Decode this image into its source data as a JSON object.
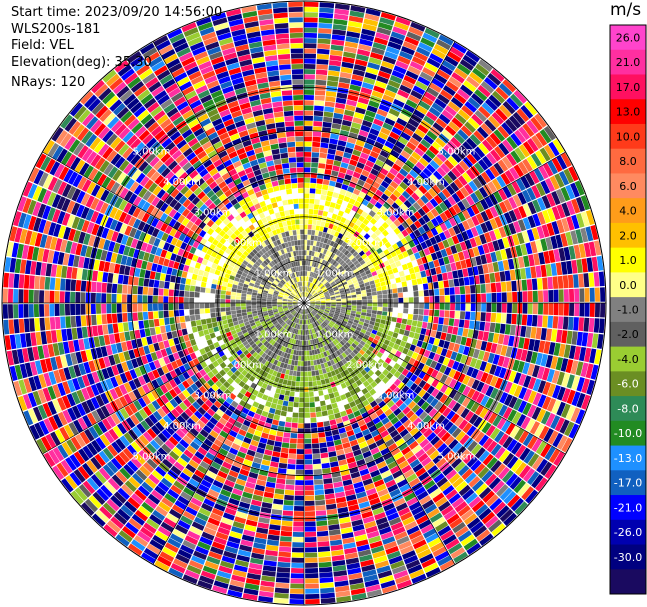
{
  "header": {
    "start_time": "Start time: 2023/09/20 14:56:00",
    "instrument": "WLS200s-181",
    "field": "Field: VEL",
    "elevation": "Elevation(deg): 35.30",
    "nrays": "NRays: 120"
  },
  "colorbar": {
    "unit": "m/s",
    "ticks": [
      "26.0",
      "21.0",
      "17.0",
      "13.0",
      "10.0",
      "8.0",
      "6.0",
      "4.0",
      "2.0",
      "1.0",
      "0.0",
      "-1.0",
      "-2.0",
      "-4.0",
      "-6.0",
      "-8.0",
      "-10.0",
      "-13.0",
      "-17.0",
      "-21.0",
      "-26.0",
      "-30.0"
    ],
    "colors": [
      "#ff44cc",
      "#ff2fa0",
      "#ff1060",
      "#ff0000",
      "#ff3a1a",
      "#ff6a40",
      "#ff8a60",
      "#ff9c1a",
      "#ffc000",
      "#ffff00",
      "#ffff88",
      "#808080",
      "#606060",
      "#9acd32",
      "#6b8e23",
      "#2e8b57",
      "#228b22",
      "#1e90ff",
      "#1060c0",
      "#0000ff",
      "#0000b0",
      "#000080",
      "#1a0a60"
    ]
  },
  "chart_data": {
    "type": "ppi",
    "field": "VEL",
    "units": "m/s",
    "elevation_deg": 35.3,
    "nrays": 120,
    "range_rings_km": [
      1.0,
      2.0,
      3.0,
      4.0,
      5.0
    ],
    "ring_labels": [
      "1.00km",
      "2.00km",
      "3.00km",
      "4.00km",
      "5.00km"
    ],
    "azimuth_lines_deg": [
      0,
      30,
      60,
      90,
      120,
      150,
      180,
      210,
      240,
      270,
      300,
      330
    ],
    "max_range_km": 7.0,
    "color_scale": {
      "bounds": [
        -30,
        -26,
        -21,
        -17,
        -13,
        -10,
        -8,
        -6,
        -4,
        -2,
        -1,
        0,
        1,
        2,
        4,
        6,
        8,
        10,
        13,
        17,
        21,
        26,
        30
      ]
    },
    "near_field_pattern": [
      {
        "range_km": [
          0.0,
          1.7
        ],
        "description_values": "mostly near 0 and +/-1 m/s with positive values toward north-east"
      },
      {
        "range_km": [
          1.7,
          2.7
        ],
        "description_values": "positive 1 to 4 m/s in north sector, -1 to -2 m/s in south sector"
      },
      {
        "range_km": [
          2.7,
          7.0
        ],
        "description_values": "noise spanning full -30 to 30 m/s range"
      }
    ]
  }
}
